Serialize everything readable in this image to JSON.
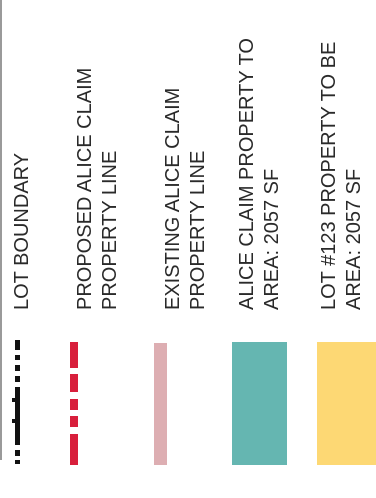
{
  "legend": {
    "items": [
      {
        "key": "lot-boundary",
        "lines": [
          "LOT BOUNDARY"
        ],
        "swatch_style": "dash-dot",
        "colors": [
          "#111111"
        ]
      },
      {
        "key": "proposed-alice-claim-property-line",
        "lines": [
          "PROPOSED ALICE CLAIM",
          "PROPERTY LINE"
        ],
        "swatch_style": "dashed",
        "colors": [
          "#d81f3c"
        ]
      },
      {
        "key": "existing-alice-claim-property-line",
        "lines": [
          "EXISTING ALICE CLAIM",
          "PROPERTY LINE"
        ],
        "swatch_style": "solid",
        "colors": [
          "#ddaeb2"
        ]
      },
      {
        "key": "alice-claim-property",
        "lines": [
          "ALICE CLAIM PROPERTY TO",
          "AREA: 2057 SF"
        ],
        "swatch_style": "fill",
        "colors": [
          "#65b6b1"
        ]
      },
      {
        "key": "lot-123-property",
        "lines": [
          "LOT #123 PROPERTY TO BE",
          "AREA: 2057 SF"
        ],
        "swatch_style": "fill",
        "colors": [
          "#fdd874"
        ]
      }
    ]
  }
}
